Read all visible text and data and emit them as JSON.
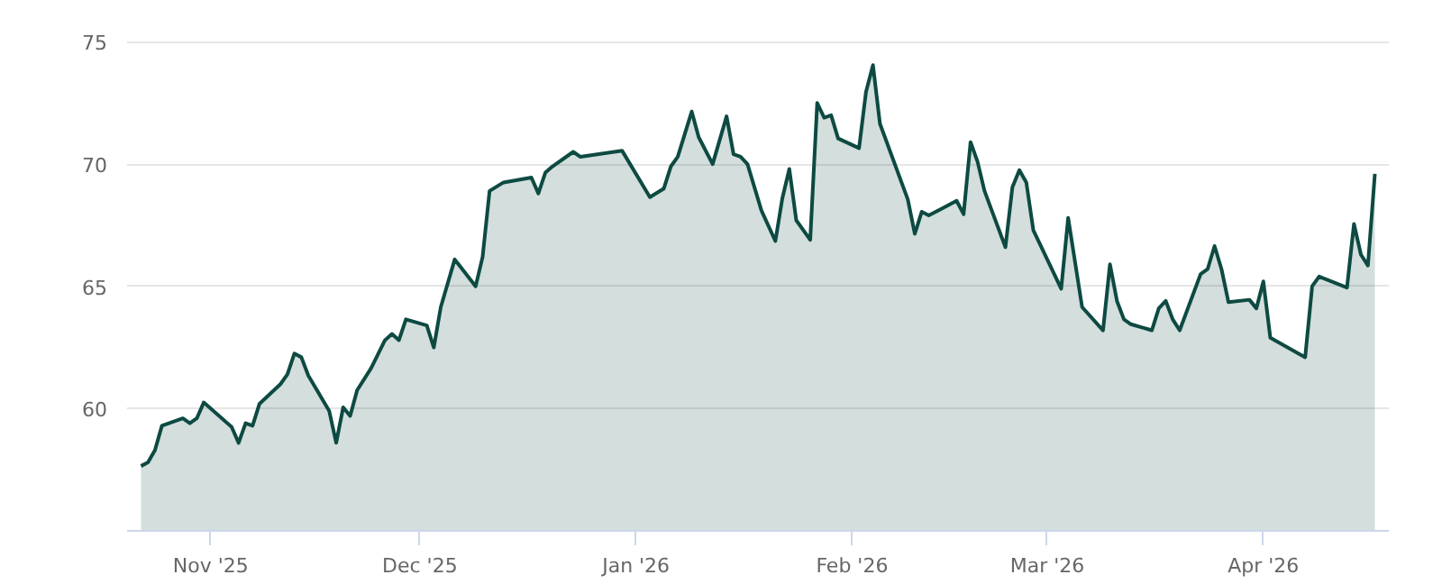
{
  "chart_data": {
    "type": "area",
    "x": [
      "2025-10-22",
      "2025-10-23",
      "2025-10-24",
      "2025-10-25",
      "2025-10-28",
      "2025-10-29",
      "2025-10-30",
      "2025-10-31",
      "2025-11-04",
      "2025-11-05",
      "2025-11-06",
      "2025-11-07",
      "2025-11-08",
      "2025-11-11",
      "2025-11-12",
      "2025-11-13",
      "2025-11-14",
      "2025-11-15",
      "2025-11-18",
      "2025-11-19",
      "2025-11-20",
      "2025-11-21",
      "2025-11-22",
      "2025-11-24",
      "2025-11-26",
      "2025-11-27",
      "2025-11-28",
      "2025-11-29",
      "2025-12-02",
      "2025-12-03",
      "2025-12-04",
      "2025-12-06",
      "2025-12-09",
      "2025-12-10",
      "2025-12-11",
      "2025-12-13",
      "2025-12-17",
      "2025-12-18",
      "2025-12-19",
      "2025-12-20",
      "2025-12-23",
      "2025-12-24",
      "2025-12-30",
      "2026-01-03",
      "2026-01-05",
      "2026-01-06",
      "2026-01-07",
      "2026-01-09",
      "2026-01-10",
      "2026-01-12",
      "2026-01-14",
      "2026-01-15",
      "2026-01-16",
      "2026-01-17",
      "2026-01-19",
      "2026-01-21",
      "2026-01-22",
      "2026-01-23",
      "2026-01-24",
      "2026-01-26",
      "2026-01-27",
      "2026-01-28",
      "2026-01-29",
      "2026-01-30",
      "2026-02-02",
      "2026-02-03",
      "2026-02-04",
      "2026-02-05",
      "2026-02-09",
      "2026-02-10",
      "2026-02-11",
      "2026-02-12",
      "2026-02-14",
      "2026-02-16",
      "2026-02-17",
      "2026-02-18",
      "2026-02-19",
      "2026-02-20",
      "2026-02-23",
      "2026-02-24",
      "2026-02-25",
      "2026-02-26",
      "2026-02-27",
      "2026-03-03",
      "2026-03-04",
      "2026-03-06",
      "2026-03-09",
      "2026-03-10",
      "2026-03-11",
      "2026-03-12",
      "2026-03-13",
      "2026-03-16",
      "2026-03-17",
      "2026-03-18",
      "2026-03-19",
      "2026-03-20",
      "2026-03-23",
      "2026-03-24",
      "2026-03-25",
      "2026-03-26",
      "2026-03-27",
      "2026-03-30",
      "2026-03-31",
      "2026-04-01",
      "2026-04-02",
      "2026-04-07",
      "2026-04-08",
      "2026-04-09",
      "2026-04-13",
      "2026-04-14",
      "2026-04-15",
      "2026-04-16",
      "2026-04-17"
    ],
    "series": [
      {
        "color": "#0d4a42",
        "values": [
          57.65,
          57.8,
          58.3,
          59.3,
          59.6,
          59.4,
          59.6,
          60.25,
          59.25,
          58.6,
          59.4,
          59.3,
          60.2,
          61.0,
          61.4,
          62.25,
          62.1,
          61.35,
          59.9,
          58.6,
          60.05,
          59.7,
          60.75,
          61.65,
          62.8,
          63.05,
          62.8,
          63.65,
          63.4,
          62.5,
          64.15,
          66.1,
          65.0,
          66.2,
          68.9,
          69.25,
          69.45,
          68.8,
          69.65,
          69.9,
          70.5,
          70.3,
          70.55,
          68.65,
          69.0,
          69.9,
          70.3,
          72.15,
          71.1,
          70.0,
          71.95,
          70.4,
          70.3,
          70.0,
          68.1,
          66.85,
          68.6,
          69.8,
          67.7,
          66.9,
          72.5,
          71.9,
          72.0,
          71.05,
          70.65,
          72.95,
          74.05,
          71.65,
          68.55,
          67.15,
          68.05,
          67.9,
          68.2,
          68.5,
          67.95,
          70.9,
          70.1,
          68.9,
          66.6,
          69.05,
          69.75,
          69.25,
          67.3,
          64.9,
          67.8,
          64.15,
          63.2,
          65.9,
          64.4,
          63.65,
          63.45,
          63.2,
          64.1,
          64.4,
          63.65,
          63.2,
          65.5,
          65.7,
          66.65,
          65.7,
          64.35,
          64.45,
          64.1,
          65.2,
          62.9,
          62.1,
          65.0,
          65.4,
          64.95,
          67.55,
          66.3,
          65.85,
          69.6
        ]
      }
    ],
    "xlim": [
      "2025-10-20",
      "2026-04-19"
    ],
    "xticks": [
      {
        "value": "2025-11-01",
        "label": "Nov '25"
      },
      {
        "value": "2025-12-01",
        "label": "Dec '25"
      },
      {
        "value": "2026-01-01",
        "label": "Jan '26"
      },
      {
        "value": "2026-02-01",
        "label": "Feb '26"
      },
      {
        "value": "2026-03-01",
        "label": "Mar '26"
      },
      {
        "value": "2026-04-01",
        "label": "Apr '26"
      }
    ],
    "ylim": [
      55,
      75.2
    ],
    "yticks": [
      60,
      65,
      70,
      75
    ],
    "grid": "y"
  }
}
